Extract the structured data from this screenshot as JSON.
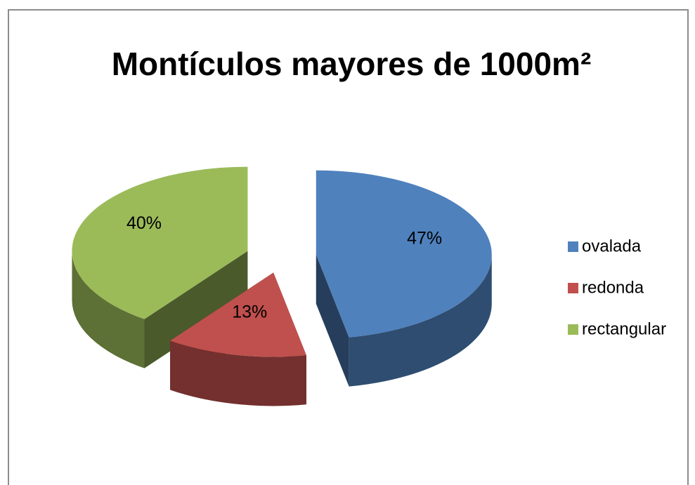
{
  "chart_data": {
    "type": "pie",
    "title": "Montículos mayores de 1000m²",
    "categories": [
      "ovalada",
      "redonda",
      "rectangular"
    ],
    "values": [
      47,
      13,
      40
    ],
    "value_labels": [
      "47%",
      "13%",
      "40%"
    ],
    "colors": [
      "#4f81bd",
      "#c0504d",
      "#9bbb59"
    ],
    "legend": "right"
  }
}
